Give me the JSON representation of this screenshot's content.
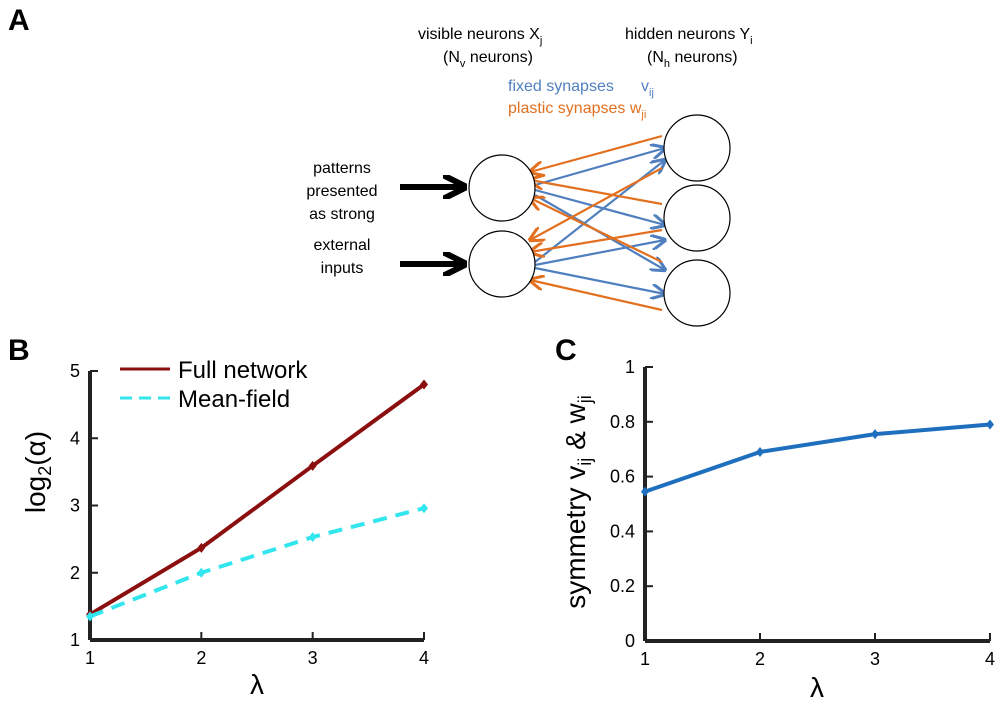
{
  "panels": {
    "a": "A",
    "b": "B",
    "c": "C"
  },
  "diagram": {
    "visible_label": "visible neurons X",
    "visible_sub": "j",
    "visible_count_pre": "(N",
    "visible_count_sub": "v",
    "visible_count_post": " neurons)",
    "hidden_label": "hidden neurons Y",
    "hidden_sub": "i",
    "hidden_count_pre": "(N",
    "hidden_count_sub": "h",
    "hidden_count_post": " neurons)",
    "fixed_label": "fixed synapses",
    "fixed_sym": "v",
    "fixed_sub": "ij",
    "plastic_label": "plastic synapses w",
    "plastic_sub": "ji",
    "input_lines": [
      "patterns",
      "presented",
      "as strong",
      "external",
      "inputs"
    ],
    "colors": {
      "fixed": "#4f7fbf",
      "plastic": "#e2701f"
    }
  },
  "chart_data": [
    {
      "type": "line",
      "x": [
        1,
        2,
        3,
        4
      ],
      "xlabel": "λ",
      "ylabel_pre": "log",
      "ylabel_sub": "2",
      "ylabel_post": "(α)",
      "xlim": [
        1,
        4
      ],
      "ylim": [
        1,
        5
      ],
      "xticks": [
        "1",
        "2",
        "3",
        "4"
      ],
      "yticks": [
        "1",
        "2",
        "3",
        "4",
        "5"
      ],
      "legend_placement": "top-left",
      "series": [
        {
          "name": "Full network",
          "values": [
            1.38,
            2.37,
            3.59,
            4.8
          ],
          "color": "#8b0f0f",
          "style": "solid"
        },
        {
          "name": "Mean-field",
          "values": [
            1.35,
            2.0,
            2.53,
            2.96
          ],
          "color": "#33e6ee",
          "style": "dashed"
        }
      ]
    },
    {
      "type": "line",
      "x": [
        1,
        2,
        3,
        4
      ],
      "xlabel": "λ",
      "ylabel_pre": "symmetry v",
      "ylabel_sub1": "ij",
      "ylabel_mid": " & w",
      "ylabel_sub2": "ji",
      "xlim": [
        1,
        4
      ],
      "ylim": [
        0,
        1
      ],
      "xticks": [
        "1",
        "2",
        "3",
        "4"
      ],
      "yticks": [
        "0",
        "0.2",
        "0.4",
        "0.6",
        "0.8",
        "1"
      ],
      "series": [
        {
          "values": [
            0.545,
            0.69,
            0.755,
            0.79
          ],
          "color": "#1f6fbf",
          "style": "solid"
        }
      ]
    }
  ]
}
